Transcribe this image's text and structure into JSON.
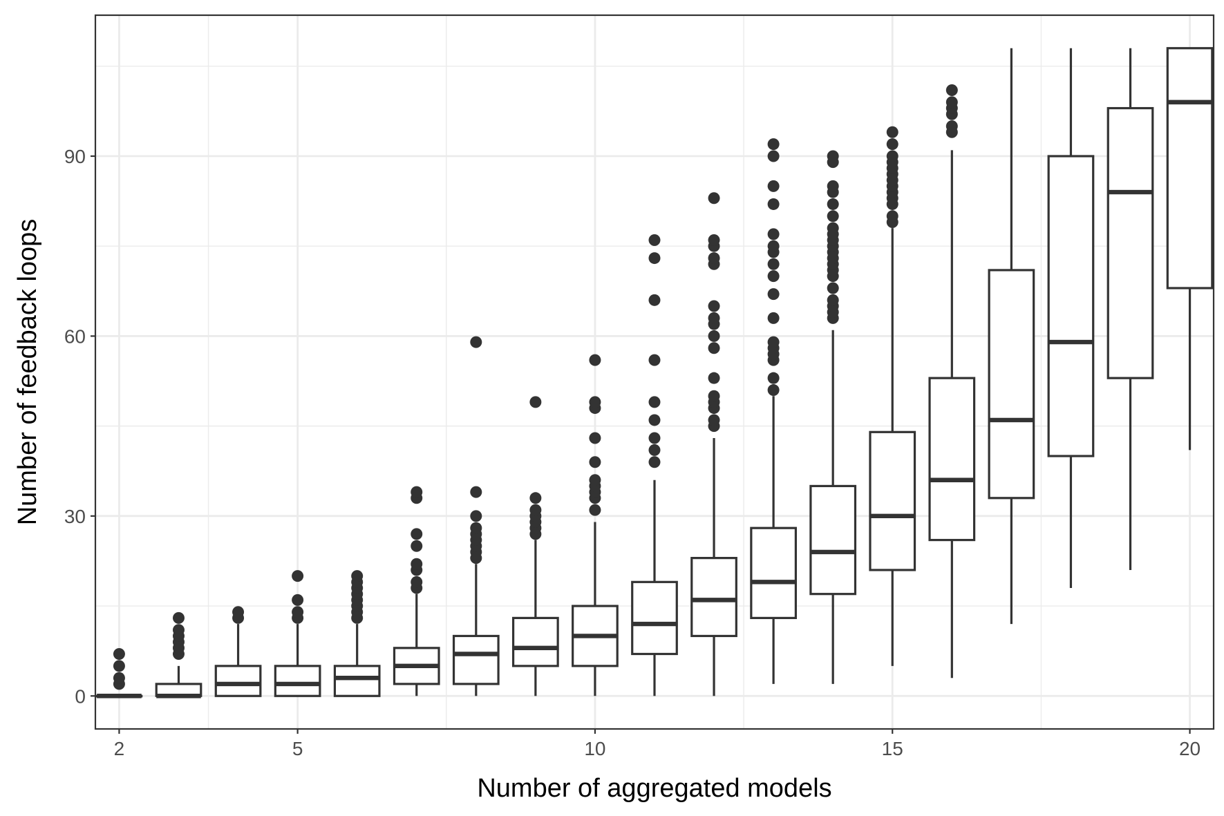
{
  "chart_data": {
    "type": "boxplot",
    "xlabel": "Number of aggregated models",
    "ylabel": "Number of feedback loops",
    "xlim": [
      1.6,
      20.4
    ],
    "ylim": [
      -5.5,
      113.5
    ],
    "x_ticks": [
      2,
      5,
      10,
      15,
      20
    ],
    "y_ticks": [
      0,
      30,
      60,
      90
    ],
    "grid": true,
    "legend": "none",
    "colors": {
      "box_stroke": "#333333",
      "outlier": "#333333",
      "grid": "#ebebeb",
      "panel_border": "#333333"
    },
    "boxes": [
      {
        "x": 2,
        "lower_whisker": 0,
        "q1": 0,
        "median": 0,
        "q3": 0,
        "upper_whisker": 0,
        "outliers": [
          2,
          3,
          5,
          7
        ]
      },
      {
        "x": 3,
        "lower_whisker": 0,
        "q1": 0,
        "median": 0,
        "q3": 2,
        "upper_whisker": 5,
        "outliers": [
          7,
          8,
          9,
          10,
          11,
          13
        ]
      },
      {
        "x": 4,
        "lower_whisker": 0,
        "q1": 0,
        "median": 2,
        "q3": 5,
        "upper_whisker": 12,
        "outliers": [
          13,
          14
        ]
      },
      {
        "x": 5,
        "lower_whisker": 0,
        "q1": 0,
        "median": 2,
        "q3": 5,
        "upper_whisker": 12,
        "outliers": [
          13,
          14,
          16,
          20
        ]
      },
      {
        "x": 6,
        "lower_whisker": 0,
        "q1": 0,
        "median": 3,
        "q3": 5,
        "upper_whisker": 12,
        "outliers": [
          13,
          14,
          15,
          16,
          17,
          18,
          19,
          20
        ]
      },
      {
        "x": 7,
        "lower_whisker": 0,
        "q1": 2,
        "median": 5,
        "q3": 8,
        "upper_whisker": 17,
        "outliers": [
          18,
          19,
          21,
          22,
          25,
          27,
          33,
          34
        ]
      },
      {
        "x": 8,
        "lower_whisker": 0,
        "q1": 2,
        "median": 7,
        "q3": 10,
        "upper_whisker": 22,
        "outliers": [
          23,
          24,
          25,
          26,
          27,
          28,
          30,
          34,
          59
        ]
      },
      {
        "x": 9,
        "lower_whisker": 0,
        "q1": 5,
        "median": 8,
        "q3": 13,
        "upper_whisker": 26,
        "outliers": [
          27,
          28,
          29,
          30,
          31,
          33,
          49
        ]
      },
      {
        "x": 10,
        "lower_whisker": 0,
        "q1": 5,
        "median": 10,
        "q3": 15,
        "upper_whisker": 29,
        "outliers": [
          31,
          33,
          34,
          35,
          36,
          39,
          43,
          48,
          49,
          56
        ]
      },
      {
        "x": 11,
        "lower_whisker": 0,
        "q1": 7,
        "median": 12,
        "q3": 19,
        "upper_whisker": 36,
        "outliers": [
          39,
          41,
          43,
          46,
          49,
          56,
          66,
          73,
          76
        ]
      },
      {
        "x": 12,
        "lower_whisker": 0,
        "q1": 10,
        "median": 16,
        "q3": 23,
        "upper_whisker": 43,
        "outliers": [
          45,
          46,
          48,
          49,
          50,
          53,
          58,
          60,
          62,
          63,
          65,
          72,
          73,
          75,
          76,
          83
        ]
      },
      {
        "x": 13,
        "lower_whisker": 2,
        "q1": 13,
        "median": 19,
        "q3": 28,
        "upper_whisker": 50,
        "outliers": [
          51,
          53,
          56,
          57,
          58,
          59,
          63,
          67,
          70,
          72,
          74,
          75,
          77,
          82,
          85,
          90,
          92
        ]
      },
      {
        "x": 14,
        "lower_whisker": 2,
        "q1": 17,
        "median": 24,
        "q3": 35,
        "upper_whisker": 61,
        "outliers": [
          63,
          64,
          65,
          66,
          68,
          70,
          71,
          72,
          73,
          74,
          75,
          76,
          77,
          78,
          80,
          82,
          84,
          85,
          89,
          90
        ]
      },
      {
        "x": 15,
        "lower_whisker": 5,
        "q1": 21,
        "median": 30,
        "q3": 44,
        "upper_whisker": 78,
        "outliers": [
          79,
          80,
          82,
          83,
          84,
          85,
          86,
          87,
          88,
          89,
          90,
          92,
          94
        ]
      },
      {
        "x": 16,
        "lower_whisker": 3,
        "q1": 26,
        "median": 36,
        "q3": 53,
        "upper_whisker": 91,
        "outliers": [
          94,
          95,
          97,
          98,
          99,
          101
        ]
      },
      {
        "x": 17,
        "lower_whisker": 12,
        "q1": 33,
        "median": 46,
        "q3": 71,
        "upper_whisker": 108,
        "outliers": []
      },
      {
        "x": 18,
        "lower_whisker": 18,
        "q1": 40,
        "median": 59,
        "q3": 90,
        "upper_whisker": 108,
        "outliers": []
      },
      {
        "x": 19,
        "lower_whisker": 21,
        "q1": 53,
        "median": 84,
        "q3": 98,
        "upper_whisker": 108,
        "outliers": []
      },
      {
        "x": 20,
        "lower_whisker": 41,
        "q1": 68,
        "median": 99,
        "q3": 108,
        "upper_whisker": 108,
        "outliers": []
      }
    ]
  }
}
